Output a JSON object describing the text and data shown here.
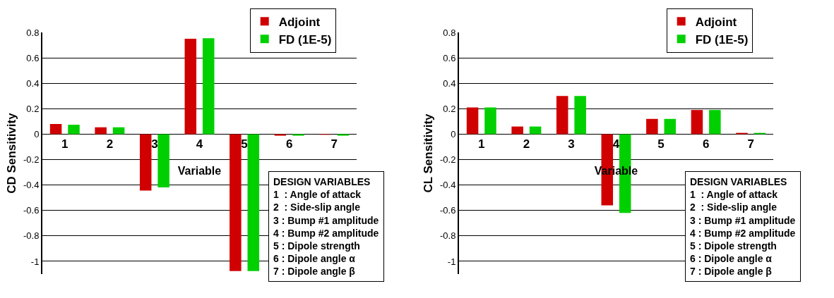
{
  "chart_data": [
    {
      "type": "bar",
      "xlabel": "Variable",
      "ylabel": "CD Sensitivity",
      "categories": [
        "1",
        "2",
        "3",
        "4",
        "5",
        "6",
        "7"
      ],
      "series": [
        {
          "name": "Adjoint",
          "color": "#d00000",
          "values": [
            0.08,
            0.054,
            -0.444,
            0.75,
            -1.076,
            -0.012,
            -0.005
          ]
        },
        {
          "name": "FD (1E-5)",
          "color": "#00d000",
          "values": [
            0.074,
            0.054,
            -0.418,
            0.754,
            -1.076,
            -0.012,
            -0.012
          ]
        }
      ],
      "ylim": [
        -1.1,
        0.8
      ],
      "yticks": [
        -1,
        -0.8,
        -0.6,
        -0.4,
        -0.2,
        0,
        0.2,
        0.4,
        0.6,
        0.8
      ],
      "grid": "y",
      "legend": "top right",
      "annotations": [
        "DESIGN VARIABLES",
        "1  : Angle of attack",
        "2  : Side-slip angle",
        "3 : Bump #1 amplitude",
        "4 : Bump #2 amplitude",
        "5 : Dipole strength",
        "6 : Dipole angle α",
        "7 : Dipole angle β"
      ]
    },
    {
      "type": "bar",
      "xlabel": "Variable",
      "ylabel": "CL Sensitivity",
      "categories": [
        "1",
        "2",
        "3",
        "4",
        "5",
        "6",
        "7"
      ],
      "series": [
        {
          "name": "Adjoint",
          "color": "#d00000",
          "values": [
            0.21,
            0.06,
            0.3,
            -0.56,
            0.12,
            0.19,
            0.01
          ]
        },
        {
          "name": "FD (1E-5)",
          "color": "#00d000",
          "values": [
            0.21,
            0.06,
            0.3,
            -0.62,
            0.12,
            0.19,
            0.01
          ]
        }
      ],
      "ylim": [
        -1.1,
        0.8
      ],
      "yticks": [
        -1,
        -0.8,
        -0.6,
        -0.4,
        -0.2,
        0,
        0.2,
        0.4,
        0.6,
        0.8
      ],
      "grid": "y",
      "legend": "top right",
      "annotations": [
        "DESIGN VARIABLES",
        "1  : Angle of attack",
        "2  : Side-slip angle",
        "3 : Bump #1 amplitude",
        "4 : Bump #2 amplitude",
        "5 : Dipole strength",
        "6 : Dipole angle α",
        "7 : Dipole angle β"
      ]
    }
  ]
}
